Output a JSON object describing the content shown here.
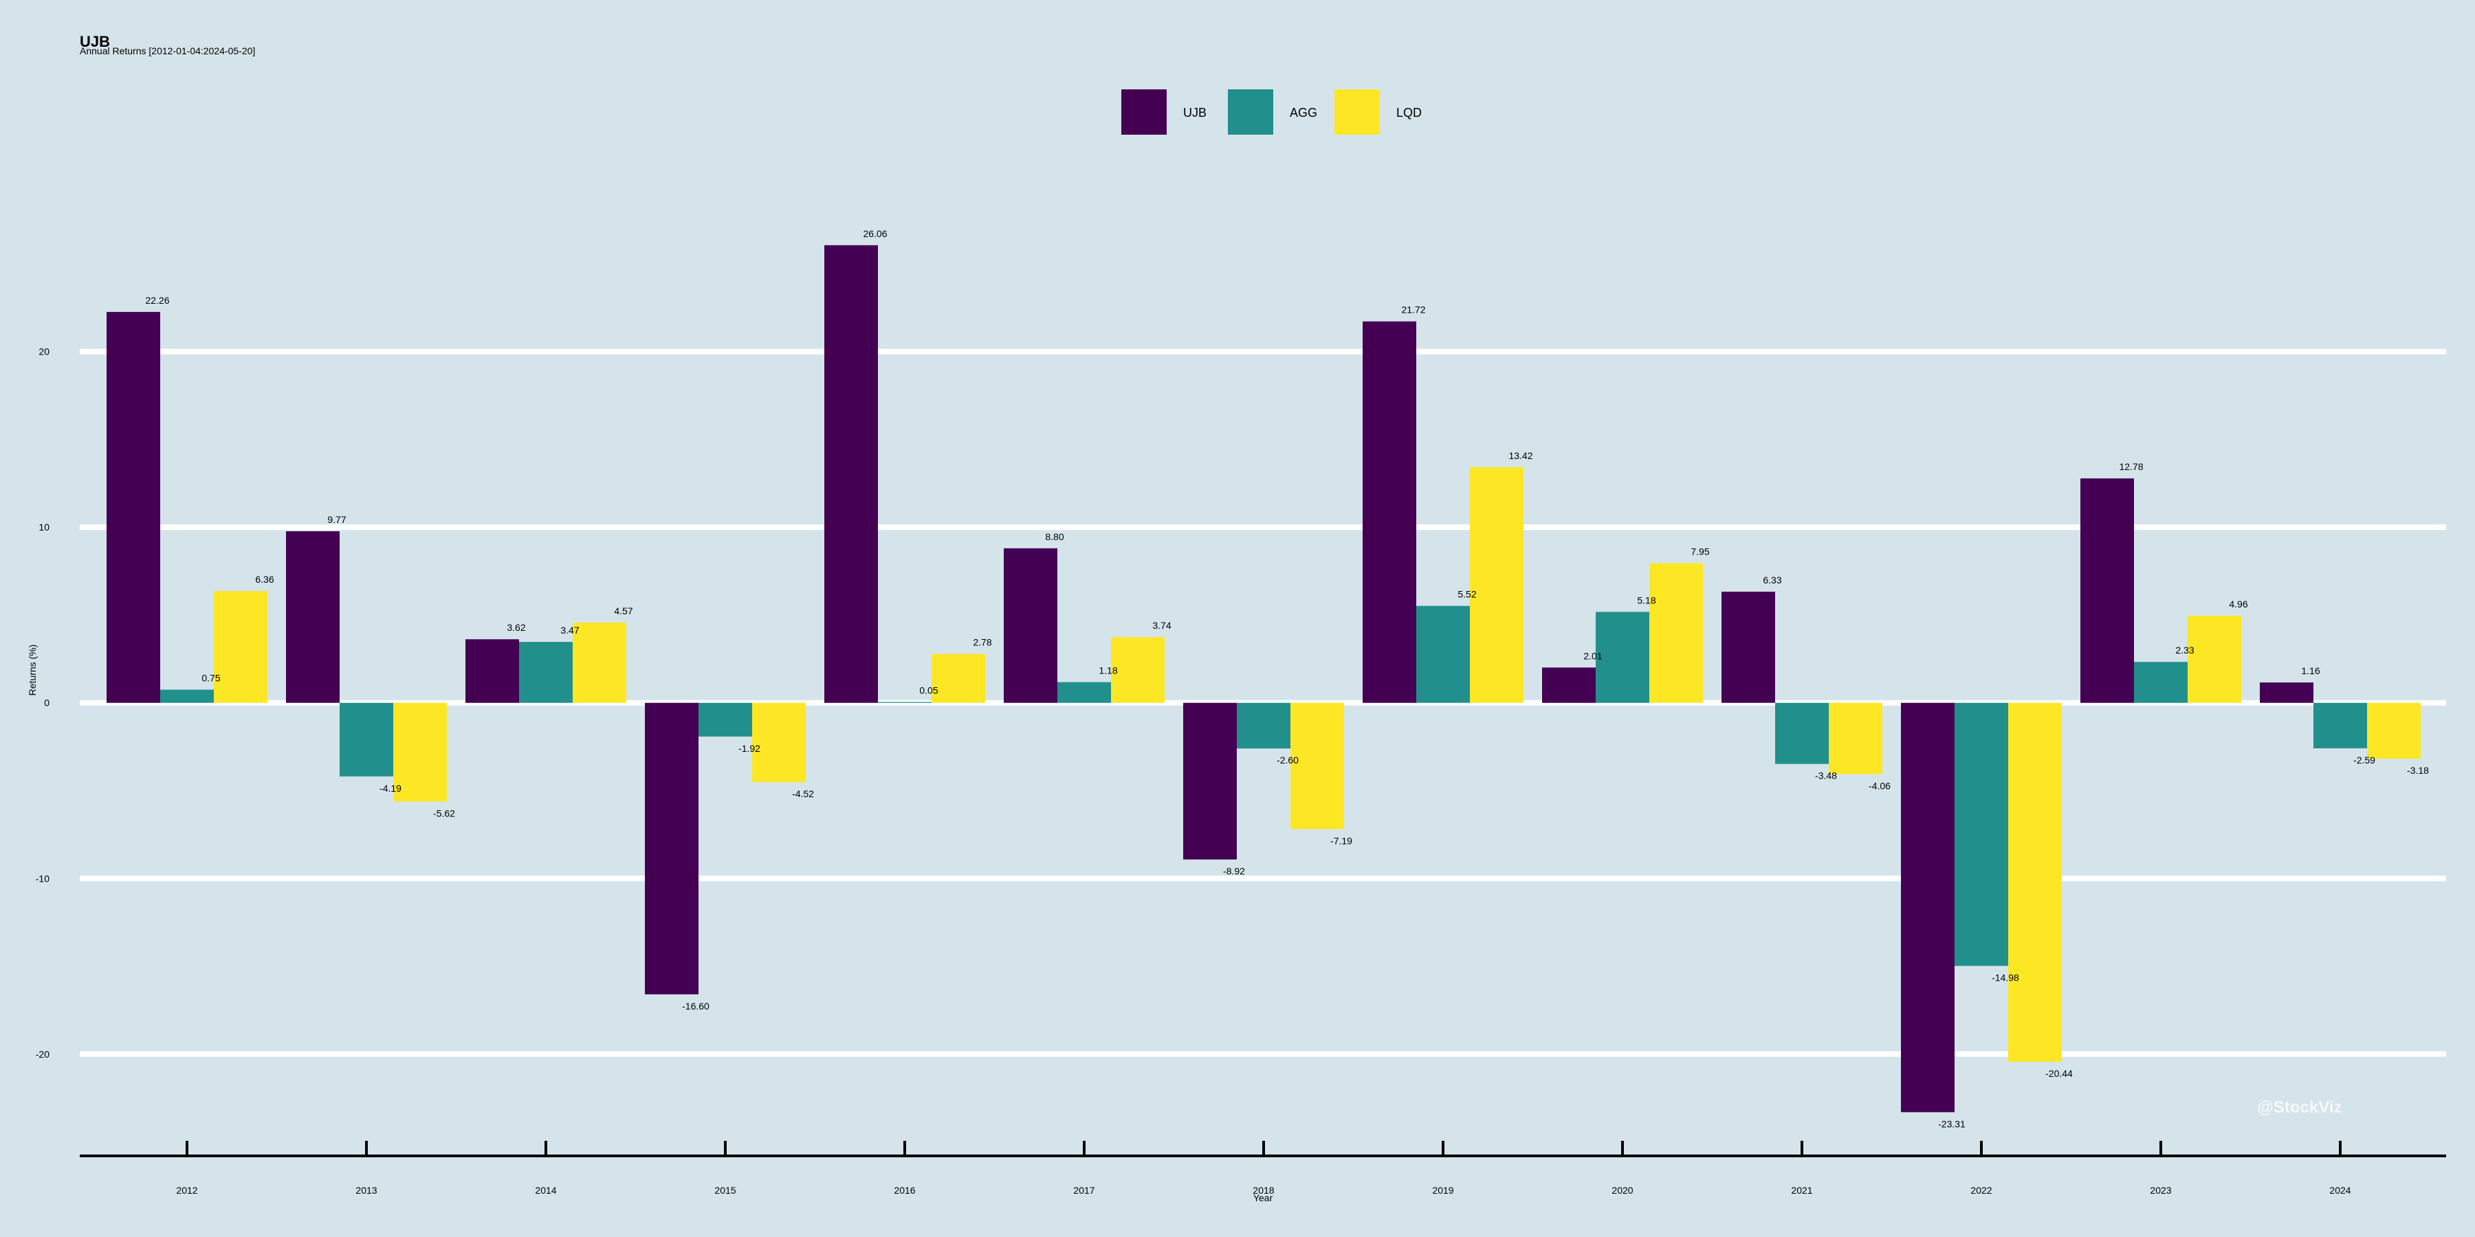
{
  "header": {
    "title": "UJB",
    "subtitle": "Annual Returns [2012-01-04:2024-05-20]"
  },
  "watermark": "@StockViz",
  "chart_data": {
    "type": "bar",
    "xlabel": "Year",
    "ylabel": "Returns (%)",
    "ylim": [
      -25.8,
      28.4
    ],
    "yticks": [
      -20,
      -10,
      0,
      10,
      20
    ],
    "grid": true,
    "legend_position": "top-center",
    "categories": [
      "2012",
      "2013",
      "2014",
      "2015",
      "2016",
      "2017",
      "2018",
      "2019",
      "2020",
      "2021",
      "2022",
      "2023",
      "2024"
    ],
    "series": [
      {
        "name": "UJB",
        "color": "#440154",
        "values": [
          22.26,
          9.77,
          3.62,
          -16.6,
          26.06,
          8.8,
          -8.92,
          21.72,
          2.01,
          6.33,
          -23.31,
          12.78,
          1.16
        ],
        "labels": [
          "22.26",
          "9.77",
          "3.62",
          "-16.60",
          "26.06",
          "8.80",
          "-8.92",
          "21.72",
          "2.01",
          "6.33",
          "-23.31",
          "12.78",
          "1.16"
        ]
      },
      {
        "name": "AGG",
        "color": "#21908c",
        "values": [
          0.75,
          -4.19,
          3.47,
          -1.92,
          0.05,
          1.18,
          -2.6,
          5.52,
          5.18,
          -3.48,
          -14.98,
          2.33,
          -2.59
        ],
        "labels": [
          "0.75",
          "-4.19",
          "3.47",
          "-1.92",
          "0.05",
          "1.18",
          "-2.60",
          "5.52",
          "5.18",
          "-3.48",
          "-14.98",
          "2.33",
          "-2.59"
        ]
      },
      {
        "name": "LQD",
        "color": "#fde725",
        "values": [
          6.36,
          -5.62,
          4.57,
          -4.52,
          2.78,
          3.74,
          -7.19,
          13.42,
          7.95,
          -4.06,
          -20.44,
          4.96,
          -3.18
        ],
        "labels": [
          "6.36",
          "-5.62",
          "4.57",
          "-4.52",
          "2.78",
          "3.74",
          "-7.19",
          "13.42",
          "7.95",
          "-4.06",
          "-20.44",
          "4.96",
          "-3.18"
        ]
      }
    ]
  }
}
